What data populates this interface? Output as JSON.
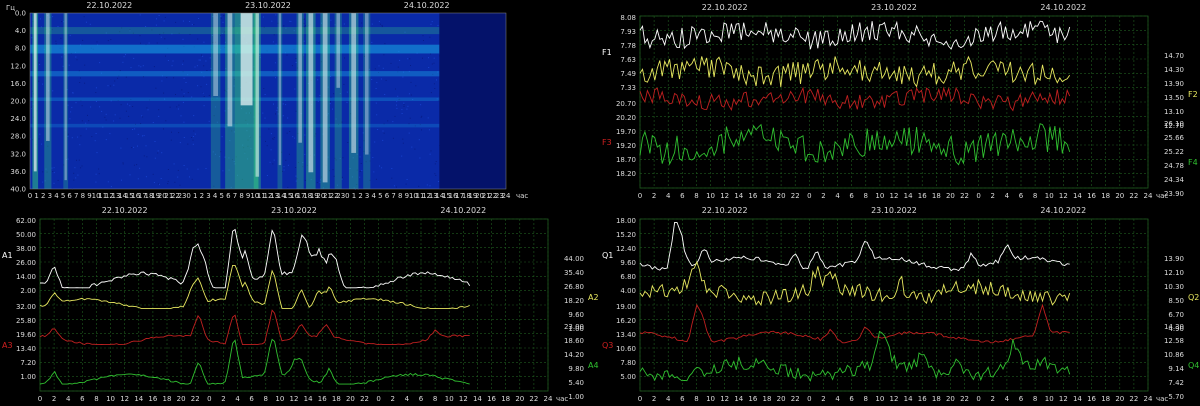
{
  "spectrogram": {
    "y_unit": "Гц",
    "x_unit": "час",
    "dates": [
      "22.10.2022",
      "23.10.2022",
      "24.10.2022"
    ],
    "y_ticks": [
      "0.0",
      "4.0",
      "8.0",
      "12.0",
      "16.0",
      "20.0",
      "24.0",
      "28.0",
      "32.0",
      "36.0",
      "40.0"
    ],
    "x_ticks": [
      "0",
      "1",
      "2",
      "3",
      "4",
      "5",
      "6",
      "7",
      "8",
      "9",
      "10",
      "11",
      "12",
      "13",
      "14",
      "15",
      "16",
      "17",
      "18",
      "19",
      "20",
      "21",
      "22",
      "23",
      "0",
      "1",
      "2",
      "3",
      "4",
      "5",
      "6",
      "7",
      "8",
      "9",
      "10",
      "11",
      "12",
      "13",
      "14",
      "15",
      "16",
      "17",
      "18",
      "19",
      "20",
      "21",
      "22",
      "23",
      "0",
      "1",
      "2",
      "3",
      "4",
      "5",
      "6",
      "7",
      "8",
      "9",
      "10",
      "11",
      "12",
      "13",
      "14",
      "15",
      "16",
      "17",
      "18",
      "19",
      "20",
      "21",
      "22",
      "23",
      "24"
    ],
    "colors": {
      "background": "#0a2aa8",
      "strong": "#ffffff",
      "medium": "#38e07a",
      "weak": "#18a8e8"
    }
  },
  "charts": [
    {
      "id": "frequency",
      "dates": [
        "22.10.2022",
        "23.10.2022",
        "24.10.2022"
      ],
      "x_ticks": [
        "0",
        "2",
        "4",
        "6",
        "8",
        "10",
        "12",
        "14",
        "16",
        "18",
        "20",
        "22",
        "0",
        "2",
        "4",
        "6",
        "8",
        "10",
        "12",
        "14",
        "16",
        "18",
        "20",
        "22",
        "0",
        "2",
        "4",
        "6",
        "8",
        "10",
        "12",
        "14",
        "16",
        "18",
        "20",
        "22",
        "24"
      ],
      "x_unit": "час",
      "left_labels": [
        {
          "name": "F1",
          "color": "#ffffff",
          "ticks": [
            "8.08",
            "7.93",
            "7.78",
            "7.63",
            "7.49",
            "7.33"
          ]
        },
        {
          "name": "F3",
          "color": "#d02020",
          "ticks": [
            "20.70",
            "20.20",
            "19.70",
            "19.20",
            "18.70",
            "18.20"
          ]
        }
      ],
      "right_labels": [
        {
          "name": "F2",
          "color": "#e8e860",
          "ticks": [
            "14.70",
            "14.30",
            "13.90",
            "13.50",
            "13.10",
            "12.70"
          ]
        },
        {
          "name": "F4",
          "color": "#30c030",
          "ticks": [
            "26.10",
            "25.66",
            "25.22",
            "24.78",
            "24.34",
            "23.90"
          ]
        }
      ],
      "chart_data": {
        "type": "line",
        "series": [
          {
            "name": "F1",
            "color": "#ffffff",
            "band": [
              0.03,
              0.25
            ],
            "base": 0.35,
            "noise": 0.55,
            "spikes": []
          },
          {
            "name": "F2",
            "color": "#e8e860",
            "band": [
              0.22,
              0.45
            ],
            "base": 0.45,
            "noise": 0.6,
            "spikes": []
          },
          {
            "name": "F3",
            "color": "#c02020",
            "band": [
              0.42,
              0.62
            ],
            "base": 0.3,
            "noise": 0.5,
            "spikes": []
          },
          {
            "name": "F4",
            "color": "#30c030",
            "band": [
              0.62,
              0.93
            ],
            "base": 0.4,
            "noise": 0.55,
            "spikes": []
          }
        ]
      }
    },
    {
      "id": "amplitude",
      "dates": [
        "22.10.2022",
        "23.10.2022",
        "24.10.2022"
      ],
      "x_ticks": [
        "0",
        "2",
        "4",
        "6",
        "8",
        "10",
        "12",
        "14",
        "16",
        "18",
        "20",
        "22",
        "0",
        "2",
        "4",
        "6",
        "8",
        "10",
        "12",
        "14",
        "16",
        "18",
        "20",
        "22",
        "0",
        "2",
        "4",
        "6",
        "8",
        "10",
        "12",
        "14",
        "16",
        "18",
        "20",
        "22",
        "24"
      ],
      "x_unit": "час",
      "left_labels": [
        {
          "name": "A1",
          "color": "#ffffff",
          "ticks": [
            "62.00",
            "50.00",
            "38.00",
            "26.00",
            "14.00",
            "2.00"
          ]
        },
        {
          "name": "A3",
          "color": "#d02020",
          "ticks": [
            "32.00",
            "25.80",
            "19.60",
            "13.40",
            "7.20",
            "1.00"
          ]
        }
      ],
      "right_labels": [
        {
          "name": "A2",
          "color": "#e8e860",
          "ticks": [
            "44.00",
            "35.40",
            "26.80",
            "18.20",
            "9.60",
            "1.00"
          ]
        },
        {
          "name": "A4",
          "color": "#30c030",
          "ticks": [
            "23.00",
            "18.60",
            "14.20",
            "9.80",
            "5.40",
            "1.00"
          ]
        }
      ],
      "chart_data": {
        "type": "line",
        "series": [
          {
            "name": "A1",
            "color": "#ffffff",
            "band": [
              0.02,
              0.4
            ],
            "base": 0.9,
            "noise": 0.05,
            "spikes": [
              [
                2,
                0.35
              ],
              [
                21.5,
                0.45
              ],
              [
                22.5,
                0.6
              ],
              [
                23.5,
                0.3
              ],
              [
                27.5,
                1.0
              ],
              [
                29,
                0.5
              ],
              [
                33,
                0.75
              ],
              [
                37,
                0.55
              ],
              [
                38,
                0.45
              ],
              [
                39.5,
                0.5
              ],
              [
                41,
                0.45
              ],
              [
                42,
                0.35
              ]
            ]
          },
          {
            "name": "A2",
            "color": "#e8e860",
            "band": [
              0.27,
              0.52
            ],
            "base": 0.9,
            "noise": 0.05,
            "spikes": [
              [
                2,
                0.25
              ],
              [
                21.5,
                0.35
              ],
              [
                22.5,
                0.55
              ],
              [
                27.5,
                1.0
              ],
              [
                29,
                0.45
              ],
              [
                33,
                0.9
              ],
              [
                37,
                0.5
              ],
              [
                39.5,
                0.4
              ],
              [
                41,
                0.45
              ]
            ]
          },
          {
            "name": "A3",
            "color": "#c02020",
            "band": [
              0.5,
              0.73
            ],
            "base": 0.9,
            "noise": 0.05,
            "spikes": [
              [
                2,
                0.25
              ],
              [
                22.5,
                0.6
              ],
              [
                27.5,
                0.85
              ],
              [
                33,
                0.9
              ],
              [
                37,
                0.35
              ],
              [
                40.5,
                0.3
              ],
              [
                56,
                0.2
              ]
            ]
          },
          {
            "name": "A4",
            "color": "#30c030",
            "band": [
              0.7,
              0.96
            ],
            "base": 0.9,
            "noise": 0.05,
            "spikes": [
              [
                2,
                0.3
              ],
              [
                22.5,
                0.55
              ],
              [
                27.5,
                1.0
              ],
              [
                33,
                0.95
              ],
              [
                36,
                0.3
              ],
              [
                37,
                0.4
              ],
              [
                41,
                0.35
              ]
            ]
          }
        ]
      }
    },
    {
      "id": "quality",
      "dates": [
        "22.10.2022",
        "23.10.2022",
        "24.10.2022"
      ],
      "x_ticks": [
        "0",
        "2",
        "4",
        "6",
        "8",
        "10",
        "12",
        "14",
        "16",
        "18",
        "20",
        "22",
        "0",
        "2",
        "4",
        "6",
        "8",
        "10",
        "12",
        "14",
        "16",
        "18",
        "20",
        "22",
        "0",
        "2",
        "4",
        "6",
        "8",
        "10",
        "12",
        "14",
        "16",
        "18",
        "20",
        "22",
        "24"
      ],
      "x_unit": "час",
      "left_labels": [
        {
          "name": "Q1",
          "color": "#ffffff",
          "ticks": [
            "18.00",
            "15.20",
            "12.40",
            "9.60",
            "6.80",
            "4.00"
          ]
        },
        {
          "name": "Q3",
          "color": "#d02020",
          "ticks": [
            "19.00",
            "16.20",
            "13.40",
            "10.60",
            "7.80",
            "5.00"
          ]
        }
      ],
      "right_labels": [
        {
          "name": "Q2",
          "color": "#e8e860",
          "ticks": [
            "13.90",
            "12.10",
            "10.30",
            "8.50",
            "6.70",
            "4.90"
          ]
        },
        {
          "name": "Q4",
          "color": "#30c030",
          "ticks": [
            "14.30",
            "12.58",
            "10.86",
            "9.14",
            "7.42",
            "5.70"
          ]
        }
      ],
      "chart_data": {
        "type": "line",
        "series": [
          {
            "name": "Q1",
            "color": "#ffffff",
            "band": [
              0.02,
              0.3
            ],
            "base": 0.85,
            "noise": 0.08,
            "spikes": [
              [
                5,
                1.0
              ],
              [
                6,
                0.5
              ],
              [
                9,
                0.35
              ],
              [
                22,
                0.3
              ],
              [
                25,
                0.4
              ],
              [
                32,
                0.45
              ],
              [
                47,
                0.3
              ],
              [
                52,
                0.35
              ]
            ]
          },
          {
            "name": "Q2",
            "color": "#e8e860",
            "band": [
              0.25,
              0.55
            ],
            "base": 0.6,
            "noise": 0.3,
            "spikes": [
              [
                8,
                0.5
              ],
              [
                25,
                0.4
              ],
              [
                27,
                0.3
              ],
              [
                37,
                0.35
              ]
            ]
          },
          {
            "name": "Q3",
            "color": "#c02020",
            "band": [
              0.5,
              0.72
            ],
            "base": 0.85,
            "noise": 0.08,
            "spikes": [
              [
                8,
                0.9
              ],
              [
                9,
                0.5
              ],
              [
                27,
                0.3
              ],
              [
                32,
                0.4
              ],
              [
                57,
                0.8
              ]
            ]
          },
          {
            "name": "Q4",
            "color": "#30c030",
            "band": [
              0.62,
              0.94
            ],
            "base": 0.8,
            "noise": 0.25,
            "spikes": [
              [
                34,
                0.5
              ],
              [
                35,
                0.35
              ],
              [
                40,
                0.3
              ],
              [
                45,
                0.3
              ],
              [
                53,
                0.4
              ]
            ]
          }
        ]
      }
    }
  ]
}
